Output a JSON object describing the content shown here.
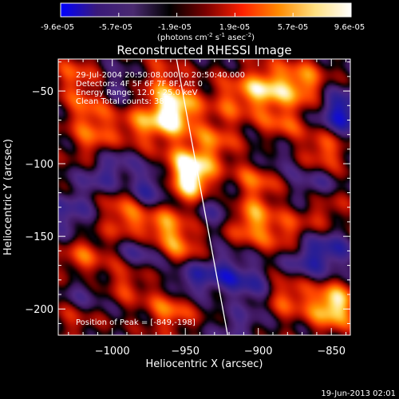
{
  "colorbar": {
    "ticks": [
      "-9.6e-05",
      "-5.7e-05",
      "-1.9e-05",
      "1.9e-05",
      "5.7e-05",
      "9.6e-05"
    ],
    "units_main": "(photons cm",
    "units_exp1": "-2",
    "units_mid": " s",
    "units_exp2": "-1",
    "units_tail": " asec",
    "units_exp3": "-2",
    "units_close": ")",
    "colors": [
      "#0000ff",
      "#3a1a7a",
      "#4a2a70",
      "#000000",
      "#7a0000",
      "#ff2000",
      "#ff8a00",
      "#ffe080",
      "#ffffff"
    ]
  },
  "chart_data": {
    "type": "heatmap",
    "title": "Reconstructed RHESSI Image",
    "xlabel": "Heliocentric X (arcsec)",
    "ylabel": "Heliocentric Y (arcsec)",
    "xlim": [
      -1037,
      -837
    ],
    "ylim": [
      -218,
      -28
    ],
    "xticks": [
      -1000,
      -950,
      -900,
      -850
    ],
    "xtick_labels": [
      "−1000",
      "−950",
      "−900",
      "−850"
    ],
    "yticks": [
      -50,
      -100,
      -150,
      -200
    ],
    "ytick_labels": [
      "−50",
      "−100",
      "−150",
      "−200"
    ],
    "annotations": [
      "29-Jul-2004 20:50:08.000 to 20:50:40.000",
      "Detectors: 4F 5F 6F 7F 8F, Att 0",
      "Energy Range: 12.0 - 25.0 keV",
      "Clean    Total counts: 38.0"
    ],
    "peak_label": "Position of Peak = [-849,-198]",
    "peak": [
      -849,
      -198
    ],
    "limb_line": [
      [
        -956,
        -28
      ],
      [
        -921,
        -218
      ]
    ],
    "blobs": [
      {
        "x": -1025,
        "y": -40,
        "v": 0.45
      },
      {
        "x": -1015,
        "y": -65,
        "v": 0.5
      },
      {
        "x": -1010,
        "y": -88,
        "v": 0.55
      },
      {
        "x": -985,
        "y": -75,
        "v": 0.45
      },
      {
        "x": -968,
        "y": -42,
        "v": 0.4
      },
      {
        "x": -965,
        "y": -70,
        "v": 0.55
      },
      {
        "x": -955,
        "y": -62,
        "v": 0.75
      },
      {
        "x": -950,
        "y": -100,
        "v": 0.55
      },
      {
        "x": -945,
        "y": -112,
        "v": 0.9
      },
      {
        "x": -930,
        "y": -85,
        "v": 0.5
      },
      {
        "x": -918,
        "y": -55,
        "v": 0.45
      },
      {
        "x": -895,
        "y": -48,
        "v": 0.8
      },
      {
        "x": -870,
        "y": -45,
        "v": 0.7
      },
      {
        "x": -885,
        "y": -75,
        "v": 0.5
      },
      {
        "x": -855,
        "y": -92,
        "v": 0.6
      },
      {
        "x": -900,
        "y": -110,
        "v": 0.6
      },
      {
        "x": -1000,
        "y": -118,
        "v": 0.55
      },
      {
        "x": -988,
        "y": -138,
        "v": 0.6
      },
      {
        "x": -965,
        "y": -145,
        "v": 0.7
      },
      {
        "x": -950,
        "y": -160,
        "v": 0.5
      },
      {
        "x": -905,
        "y": -140,
        "v": 0.7
      },
      {
        "x": -880,
        "y": -150,
        "v": 0.5
      },
      {
        "x": -855,
        "y": -130,
        "v": 0.45
      },
      {
        "x": -1020,
        "y": -165,
        "v": 0.5
      },
      {
        "x": -990,
        "y": -180,
        "v": 0.45
      },
      {
        "x": -960,
        "y": -200,
        "v": 0.6
      },
      {
        "x": -935,
        "y": -185,
        "v": 0.4
      },
      {
        "x": -915,
        "y": -200,
        "v": 0.45
      },
      {
        "x": -880,
        "y": -190,
        "v": 0.55
      },
      {
        "x": -849,
        "y": -198,
        "v": 1.0
      },
      {
        "x": -1025,
        "y": -205,
        "v": 0.35
      },
      {
        "x": -1030,
        "y": -135,
        "v": -0.45
      },
      {
        "x": -1005,
        "y": -112,
        "v": -0.7
      },
      {
        "x": -975,
        "y": -118,
        "v": -0.6
      },
      {
        "x": -1000,
        "y": -95,
        "v": -0.4
      },
      {
        "x": -980,
        "y": -160,
        "v": -0.55
      },
      {
        "x": -945,
        "y": -180,
        "v": -0.75
      },
      {
        "x": -925,
        "y": -178,
        "v": -0.65
      },
      {
        "x": -905,
        "y": -185,
        "v": -0.5
      },
      {
        "x": -915,
        "y": -208,
        "v": -0.6
      },
      {
        "x": -1020,
        "y": -190,
        "v": -0.4
      },
      {
        "x": -890,
        "y": -95,
        "v": -0.45
      },
      {
        "x": -860,
        "y": -115,
        "v": -0.5
      },
      {
        "x": -843,
        "y": -65,
        "v": -0.8
      },
      {
        "x": -870,
        "y": -165,
        "v": -0.55
      },
      {
        "x": -850,
        "y": -160,
        "v": -0.5
      },
      {
        "x": -930,
        "y": -130,
        "v": -0.4
      },
      {
        "x": -995,
        "y": -48,
        "v": -0.3
      }
    ]
  },
  "footer": {
    "timestamp": "19-Jun-2013 02:01"
  }
}
